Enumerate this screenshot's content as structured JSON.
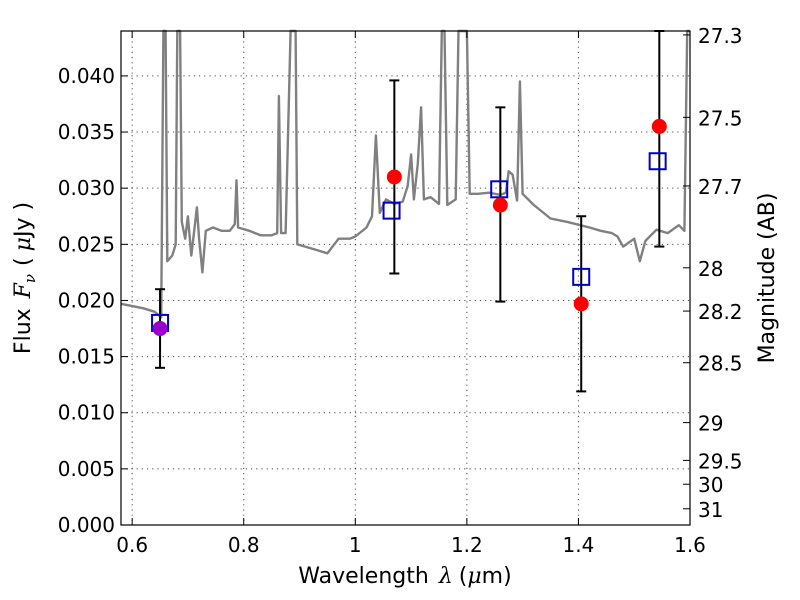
{
  "chart_data": {
    "type": "scatter",
    "xlabel_text": "Wavelength",
    "xlabel_symbol": "λ",
    "xlabel_unit_open": "(",
    "xlabel_unit_mu": "μ",
    "xlabel_unit_rest": "m)",
    "ylabel_text": "Flux",
    "ylabel_symbol_F": "F",
    "ylabel_symbol_nu": "ν",
    "ylabel_unit_open": "(",
    "ylabel_unit_mu": "μ",
    "ylabel_unit_rest": "Jy )",
    "y2label": "Magnitude (AB)",
    "xlim": [
      0.58,
      1.6
    ],
    "ylim": [
      0.0,
      0.044
    ],
    "xticks": [
      0.6,
      0.8,
      1.0,
      1.2,
      1.4,
      1.6
    ],
    "xtick_labels": [
      "0.6",
      "0.8",
      "1",
      "1.2",
      "1.4",
      "1.6"
    ],
    "yticks": [
      0.0,
      0.005,
      0.01,
      0.015,
      0.02,
      0.025,
      0.03,
      0.035,
      0.04
    ],
    "ytick_labels": [
      "0.000",
      "0.005",
      "0.010",
      "0.015",
      "0.020",
      "0.025",
      "0.030",
      "0.035",
      "0.040"
    ],
    "mag_ticks": [
      27.3,
      27.5,
      27.7,
      28,
      28.2,
      28.5,
      29,
      29.5,
      30,
      31
    ],
    "mag_tick_labels": [
      "27.3",
      "27.5",
      "27.7",
      "28",
      "28.2",
      "28.5",
      "29",
      "29.5",
      "30",
      "31"
    ],
    "grid": true,
    "colors": {
      "spectrum": "#808080",
      "observed": "#ff0000",
      "model": "#0000cc",
      "overlap": "#9900cc",
      "errorbar": "#000000"
    },
    "observed": [
      {
        "x": 0.65,
        "y": 0.0175,
        "err_low": 0.014,
        "err_high": 0.021
      },
      {
        "x": 1.07,
        "y": 0.031,
        "err_low": 0.0224,
        "err_high": 0.0396
      },
      {
        "x": 1.26,
        "y": 0.0285,
        "err_low": 0.0199,
        "err_high": 0.0372
      },
      {
        "x": 1.405,
        "y": 0.0197,
        "err_low": 0.0119,
        "err_high": 0.0275
      },
      {
        "x": 1.545,
        "y": 0.0355,
        "err_low": 0.0248,
        "err_high": 0.044
      }
    ],
    "model": [
      {
        "x": 0.65,
        "y": 0.018
      },
      {
        "x": 1.065,
        "y": 0.028
      },
      {
        "x": 1.258,
        "y": 0.0299
      },
      {
        "x": 1.405,
        "y": 0.0221
      },
      {
        "x": 1.542,
        "y": 0.0324
      }
    ],
    "spectrum": [
      [
        0.58,
        0.0197
      ],
      [
        0.6,
        0.0195
      ],
      [
        0.62,
        0.0193
      ],
      [
        0.64,
        0.019
      ],
      [
        0.652,
        0.0185
      ],
      [
        0.656,
        0.044
      ],
      [
        0.66,
        0.044
      ],
      [
        0.663,
        0.0235
      ],
      [
        0.672,
        0.024
      ],
      [
        0.678,
        0.025
      ],
      [
        0.681,
        0.044
      ],
      [
        0.686,
        0.044
      ],
      [
        0.689,
        0.027
      ],
      [
        0.695,
        0.0255
      ],
      [
        0.7,
        0.0275
      ],
      [
        0.706,
        0.024
      ],
      [
        0.712,
        0.0265
      ],
      [
        0.716,
        0.0283
      ],
      [
        0.72,
        0.0255
      ],
      [
        0.726,
        0.0225
      ],
      [
        0.732,
        0.0262
      ],
      [
        0.745,
        0.0265
      ],
      [
        0.76,
        0.0262
      ],
      [
        0.775,
        0.0262
      ],
      [
        0.784,
        0.0268
      ],
      [
        0.787,
        0.0307
      ],
      [
        0.79,
        0.0265
      ],
      [
        0.81,
        0.0262
      ],
      [
        0.83,
        0.0258
      ],
      [
        0.85,
        0.0258
      ],
      [
        0.86,
        0.026
      ],
      [
        0.863,
        0.0382
      ],
      [
        0.867,
        0.026
      ],
      [
        0.875,
        0.026
      ],
      [
        0.884,
        0.044
      ],
      [
        0.893,
        0.044
      ],
      [
        0.896,
        0.025
      ],
      [
        0.91,
        0.0248
      ],
      [
        0.93,
        0.0245
      ],
      [
        0.95,
        0.0242
      ],
      [
        0.97,
        0.0255
      ],
      [
        0.99,
        0.0255
      ],
      [
        1.0,
        0.0257
      ],
      [
        1.02,
        0.0265
      ],
      [
        1.03,
        0.0275
      ],
      [
        1.037,
        0.0347
      ],
      [
        1.044,
        0.0278
      ],
      [
        1.055,
        0.029
      ],
      [
        1.07,
        0.0286
      ],
      [
        1.085,
        0.0288
      ],
      [
        1.094,
        0.0302
      ],
      [
        1.1,
        0.033
      ],
      [
        1.105,
        0.029
      ],
      [
        1.112,
        0.0322
      ],
      [
        1.118,
        0.0372
      ],
      [
        1.123,
        0.029
      ],
      [
        1.135,
        0.0292
      ],
      [
        1.15,
        0.0286
      ],
      [
        1.155,
        0.044
      ],
      [
        1.16,
        0.044
      ],
      [
        1.165,
        0.0285
      ],
      [
        1.18,
        0.029
      ],
      [
        1.185,
        0.044
      ],
      [
        1.2,
        0.044
      ],
      [
        1.205,
        0.0295
      ],
      [
        1.22,
        0.0295
      ],
      [
        1.24,
        0.0296
      ],
      [
        1.26,
        0.0294
      ],
      [
        1.27,
        0.0296
      ],
      [
        1.275,
        0.0315
      ],
      [
        1.282,
        0.0312
      ],
      [
        1.29,
        0.0289
      ],
      [
        1.295,
        0.0395
      ],
      [
        1.3,
        0.0295
      ],
      [
        1.32,
        0.0285
      ],
      [
        1.35,
        0.0273
      ],
      [
        1.38,
        0.027
      ],
      [
        1.42,
        0.0265
      ],
      [
        1.44,
        0.0262
      ],
      [
        1.46,
        0.026
      ],
      [
        1.47,
        0.0257
      ],
      [
        1.48,
        0.0248
      ],
      [
        1.5,
        0.0255
      ],
      [
        1.51,
        0.0235
      ],
      [
        1.52,
        0.0253
      ],
      [
        1.54,
        0.0263
      ],
      [
        1.56,
        0.026
      ],
      [
        1.58,
        0.0267
      ],
      [
        1.59,
        0.0262
      ],
      [
        1.595,
        0.044
      ],
      [
        1.6,
        0.044
      ]
    ]
  }
}
